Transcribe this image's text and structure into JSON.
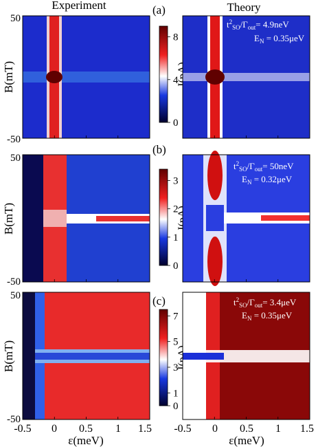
{
  "header": {
    "left": "Experiment",
    "right": "Theory"
  },
  "chart_data": [
    {
      "type": "heatmap",
      "panel": "a",
      "panel_label": "(a)",
      "ylabel": "B(mT)",
      "yticks": [
        "50",
        "-50"
      ],
      "ylim": [
        -50,
        50
      ],
      "xlim": [
        -0.5,
        1.5
      ],
      "colorbar": {
        "label": "I(pA)",
        "ticks": [
          {
            "v": 8,
            "t": "8"
          },
          {
            "v": 4,
            "t": "4"
          },
          {
            "v": 0,
            "t": "0"
          }
        ],
        "range": [
          0,
          9
        ]
      },
      "theory": {
        "ratio_value": "= 4.9neV",
        "en": "E",
        "en_sub": "N",
        "en_value": " = 0.35μeV"
      },
      "features": {
        "peak_eps_meV": 0.0,
        "peak_current_pA": 9.0,
        "stripe_B_mT": 0,
        "background_pA": 0.6
      }
    },
    {
      "type": "heatmap",
      "panel": "b",
      "panel_label": "(b)",
      "ylabel": "B(mT)",
      "yticks": [
        "50",
        "-50"
      ],
      "ylim": [
        -50,
        50
      ],
      "xlim": [
        -0.5,
        1.5
      ],
      "colorbar": {
        "label": "I(pA)",
        "ticks": [
          {
            "v": 3,
            "t": "3"
          },
          {
            "v": 2,
            "t": "2"
          },
          {
            "v": 1,
            "t": "1"
          },
          {
            "v": 0,
            "t": "0"
          }
        ],
        "range": [
          0,
          3.4
        ]
      },
      "theory": {
        "ratio_value": "= 50neV",
        "en": "E",
        "en_sub": "N",
        "en_value": " = 0.32μeV"
      },
      "features": {
        "peak_eps_meV": 0.0,
        "stripe_B_mT": 0,
        "dip_at_B0": true
      }
    },
    {
      "type": "heatmap",
      "panel": "c",
      "panel_label": "(c)",
      "ylabel": "B(mT)",
      "yticks": [
        "50",
        "-50"
      ],
      "ylim": [
        -50,
        50
      ],
      "xlim": [
        -0.5,
        1.5
      ],
      "xlabel": "ε(meV)",
      "xticks": [
        "-0.5",
        "0",
        "0.5",
        "1",
        "1.5"
      ],
      "colorbar": {
        "label": "I(pA)",
        "ticks": [
          {
            "v": 7,
            "t": "7"
          },
          {
            "v": 5,
            "t": "5"
          },
          {
            "v": 3,
            "t": "3"
          },
          {
            "v": 1,
            "t": "1"
          },
          {
            "v": 0,
            "t": "0"
          }
        ],
        "range": [
          0,
          7.5
        ]
      },
      "theory": {
        "ratio_value": "= 3.4μeV",
        "en": "E",
        "en_sub": "N",
        "en_value": " = 0.35μeV"
      },
      "features": {
        "onset_eps_meV": -0.3,
        "stripe_B_mT": 0
      }
    }
  ],
  "ratio_text": {
    "t": "t",
    "sup": "2",
    "so": "SO",
    "slash": "/Γ",
    "out": "out"
  },
  "colors": {
    "low": "#0a0a40",
    "mid": "#ffffff",
    "high": "#5a0000"
  }
}
